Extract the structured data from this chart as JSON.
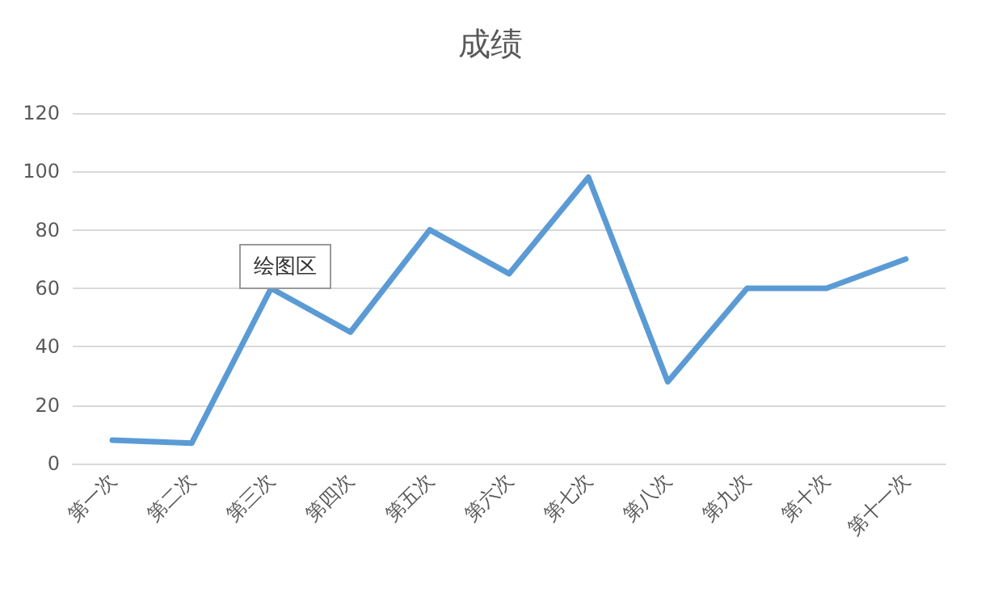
{
  "chart_data": {
    "type": "line",
    "title": "成绩",
    "categories": [
      "第一次",
      "第二次",
      "第三次",
      "第四次",
      "第五次",
      "第六次",
      "第七次",
      "第八次",
      "第九次",
      "第十次",
      "第十一次"
    ],
    "series": [
      {
        "color": "#5b9bd5",
        "values": [
          8,
          7,
          60,
          45,
          80,
          65,
          98,
          28,
          60,
          60,
          70
        ]
      }
    ],
    "ylim": [
      0,
      120
    ],
    "yticks": [
      0,
      20,
      40,
      60,
      80,
      100,
      120
    ],
    "grid": "y",
    "marker": "none",
    "line_style": "solid",
    "annotations": [
      "绘图区"
    ]
  }
}
